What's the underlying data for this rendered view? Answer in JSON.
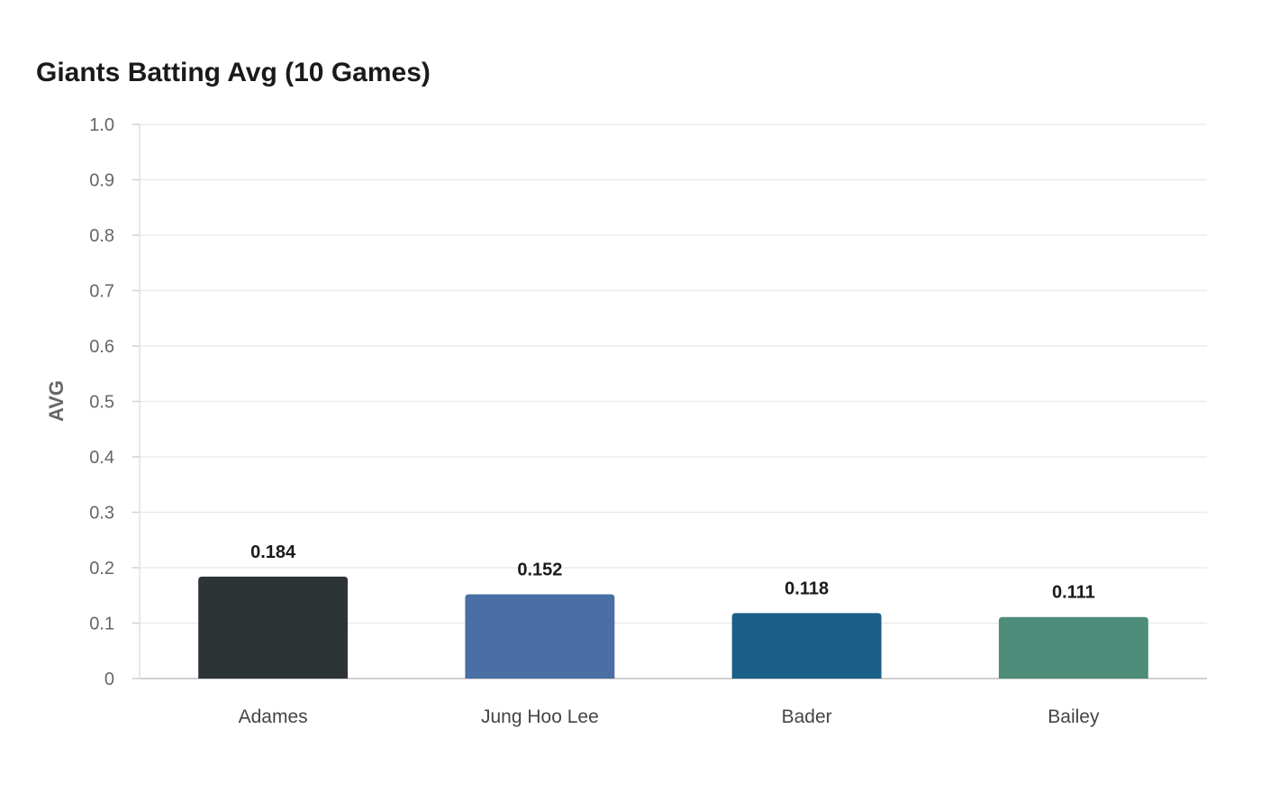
{
  "chart_data": {
    "type": "bar",
    "title": "Giants Batting Avg (10 Games)",
    "xlabel": "",
    "ylabel": "AVG",
    "ylim": [
      0,
      1.0
    ],
    "yticks": [
      "0",
      "0.1",
      "0.2",
      "0.3",
      "0.4",
      "0.5",
      "0.6",
      "0.7",
      "0.8",
      "0.9",
      "1.0"
    ],
    "grid": true,
    "categories": [
      "Adames",
      "Jung Hoo Lee",
      "Bader",
      "Bailey"
    ],
    "values": [
      0.184,
      0.152,
      0.118,
      0.111
    ],
    "data_labels": [
      "0.184",
      "0.152",
      "0.118",
      "0.111"
    ],
    "colors": [
      "#2d3436",
      "#4a6fa5",
      "#1a5f85",
      "#4e8c7a"
    ]
  }
}
